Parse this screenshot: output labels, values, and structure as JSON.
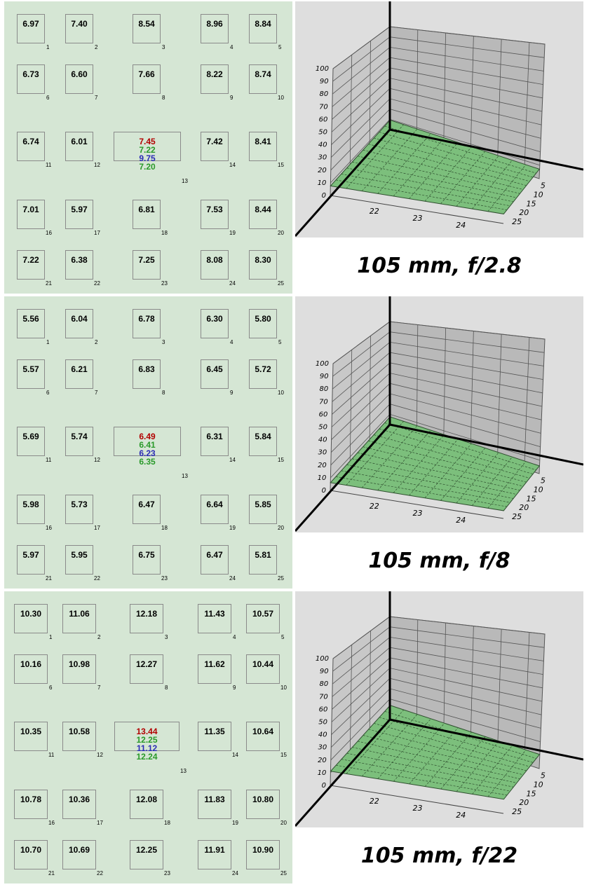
{
  "colors": {
    "panel_bg": "#d5e6d4",
    "plot_bg": "#dedede",
    "surface": "#7cbf7c",
    "red": "#b20000",
    "green": "#2a9a2a",
    "blue": "#2a2ab5"
  },
  "chart_data": [
    {
      "type": "table",
      "caption": "105 mm, f/2.8",
      "cells": [
        {
          "id": "1",
          "value": "6.97"
        },
        {
          "id": "2",
          "value": "7.40"
        },
        {
          "id": "3",
          "value": "8.54"
        },
        {
          "id": "4",
          "value": "8.96"
        },
        {
          "id": "5",
          "value": "8.84"
        },
        {
          "id": "6",
          "value": "6.73"
        },
        {
          "id": "7",
          "value": "6.60"
        },
        {
          "id": "8",
          "value": "7.66"
        },
        {
          "id": "9",
          "value": "8.22"
        },
        {
          "id": "10",
          "value": "8.74"
        },
        {
          "id": "11",
          "value": "6.74"
        },
        {
          "id": "12",
          "value": "6.01"
        },
        {
          "id": "13",
          "values": [
            "7.45",
            "7.22",
            "9.75",
            "7.20"
          ]
        },
        {
          "id": "14",
          "value": "7.42"
        },
        {
          "id": "15",
          "value": "8.41"
        },
        {
          "id": "16",
          "value": "7.01"
        },
        {
          "id": "17",
          "value": "5.97"
        },
        {
          "id": "18",
          "value": "6.81"
        },
        {
          "id": "19",
          "value": "7.53"
        },
        {
          "id": "20",
          "value": "8.44"
        },
        {
          "id": "21",
          "value": "7.22"
        },
        {
          "id": "22",
          "value": "6.38"
        },
        {
          "id": "23",
          "value": "7.25"
        },
        {
          "id": "24",
          "value": "8.08"
        },
        {
          "id": "25",
          "value": "8.30"
        }
      ],
      "surface": {
        "zlim": [
          0,
          100
        ],
        "z_ticks": [
          "0",
          "10",
          "20",
          "30",
          "40",
          "50",
          "60",
          "70",
          "80",
          "90",
          "100"
        ],
        "x_ticks": [
          "22",
          "23",
          "24"
        ],
        "y_ticks": [
          "5",
          "10",
          "15",
          "20",
          "25"
        ]
      }
    },
    {
      "type": "table",
      "caption": "105 mm, f/8",
      "cells": [
        {
          "id": "1",
          "value": "5.56"
        },
        {
          "id": "2",
          "value": "6.04"
        },
        {
          "id": "3",
          "value": "6.78"
        },
        {
          "id": "4",
          "value": "6.30"
        },
        {
          "id": "5",
          "value": "5.80"
        },
        {
          "id": "6",
          "value": "5.57"
        },
        {
          "id": "7",
          "value": "6.21"
        },
        {
          "id": "8",
          "value": "6.83"
        },
        {
          "id": "9",
          "value": "6.45"
        },
        {
          "id": "10",
          "value": "5.72"
        },
        {
          "id": "11",
          "value": "5.69"
        },
        {
          "id": "12",
          "value": "5.74"
        },
        {
          "id": "13",
          "values": [
            "6.49",
            "6.41",
            "6.23",
            "6.35"
          ]
        },
        {
          "id": "14",
          "value": "6.31"
        },
        {
          "id": "15",
          "value": "5.84"
        },
        {
          "id": "16",
          "value": "5.98"
        },
        {
          "id": "17",
          "value": "5.73"
        },
        {
          "id": "18",
          "value": "6.47"
        },
        {
          "id": "19",
          "value": "6.64"
        },
        {
          "id": "20",
          "value": "5.85"
        },
        {
          "id": "21",
          "value": "5.97"
        },
        {
          "id": "22",
          "value": "5.95"
        },
        {
          "id": "23",
          "value": "6.75"
        },
        {
          "id": "24",
          "value": "6.47"
        },
        {
          "id": "25",
          "value": "5.81"
        }
      ],
      "surface": {
        "zlim": [
          0,
          100
        ],
        "z_ticks": [
          "0",
          "10",
          "20",
          "30",
          "40",
          "50",
          "60",
          "70",
          "80",
          "90",
          "100"
        ],
        "x_ticks": [
          "22",
          "23",
          "24"
        ],
        "y_ticks": [
          "5",
          "10",
          "15",
          "20",
          "25"
        ]
      }
    },
    {
      "type": "table",
      "caption": "105 mm, f/22",
      "cells": [
        {
          "id": "1",
          "value": "10.30"
        },
        {
          "id": "2",
          "value": "11.06"
        },
        {
          "id": "3",
          "value": "12.18"
        },
        {
          "id": "4",
          "value": "11.43"
        },
        {
          "id": "5",
          "value": "10.57"
        },
        {
          "id": "6",
          "value": "10.16"
        },
        {
          "id": "7",
          "value": "10.98"
        },
        {
          "id": "8",
          "value": "12.27"
        },
        {
          "id": "9",
          "value": "11.62"
        },
        {
          "id": "10",
          "value": "10.44"
        },
        {
          "id": "11",
          "value": "10.35"
        },
        {
          "id": "12",
          "value": "10.58"
        },
        {
          "id": "13",
          "values": [
            "13.44",
            "12.25",
            "11.12",
            "12.24"
          ]
        },
        {
          "id": "14",
          "value": "11.35"
        },
        {
          "id": "15",
          "value": "10.64"
        },
        {
          "id": "16",
          "value": "10.78"
        },
        {
          "id": "17",
          "value": "10.36"
        },
        {
          "id": "18",
          "value": "12.08"
        },
        {
          "id": "19",
          "value": "11.83"
        },
        {
          "id": "20",
          "value": "10.80"
        },
        {
          "id": "21",
          "value": "10.70"
        },
        {
          "id": "22",
          "value": "10.69"
        },
        {
          "id": "23",
          "value": "12.25"
        },
        {
          "id": "24",
          "value": "11.91"
        },
        {
          "id": "25",
          "value": "10.90"
        }
      ],
      "surface": {
        "zlim": [
          0,
          100
        ],
        "z_ticks": [
          "0",
          "10",
          "20",
          "30",
          "40",
          "50",
          "60",
          "70",
          "80",
          "90",
          "100"
        ],
        "x_ticks": [
          "22",
          "23",
          "24"
        ],
        "y_ticks": [
          "5",
          "10",
          "15",
          "20",
          "25"
        ]
      }
    }
  ]
}
